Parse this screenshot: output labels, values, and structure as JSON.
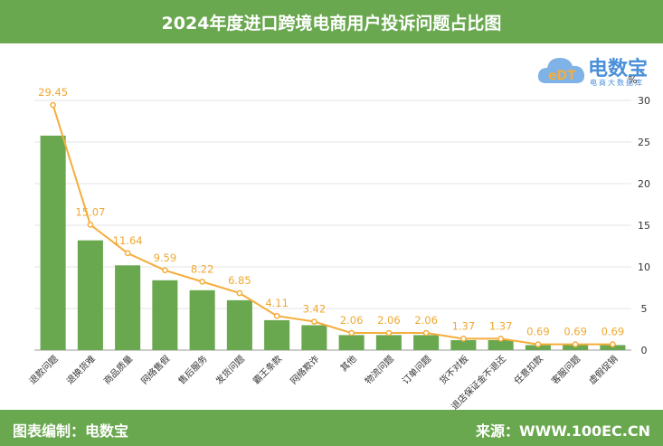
{
  "title": "2024年度进口跨境电商用户投诉问题占比图",
  "footer": {
    "left": "图表编制：电数宝",
    "right": "来源：WWW.100EC.CN"
  },
  "logo": {
    "name": "电数宝",
    "sub": "电商大数据库"
  },
  "unit": "%",
  "colors": {
    "header": "#6aa84f",
    "bar": "#6aa84f",
    "line": "#f5ad3c",
    "label": "#f0a830"
  },
  "chart_data": {
    "type": "bar",
    "categories": [
      "退款问题",
      "退换货难",
      "商品质量",
      "网络售假",
      "售后服务",
      "发货问题",
      "霸王条款",
      "网络欺诈",
      "其他",
      "物流问题",
      "订单问题",
      "货不对板",
      "退店保证金不退还",
      "任意扣款",
      "客服问题",
      "虚假促销"
    ],
    "values": [
      29.45,
      15.07,
      11.64,
      9.59,
      8.22,
      6.85,
      4.11,
      3.42,
      2.06,
      2.06,
      2.06,
      1.37,
      1.37,
      0.69,
      0.69,
      0.69
    ],
    "yticks": [
      0,
      5,
      10,
      15,
      20,
      25,
      30
    ],
    "ylim": [
      0,
      30
    ],
    "grid": true
  }
}
